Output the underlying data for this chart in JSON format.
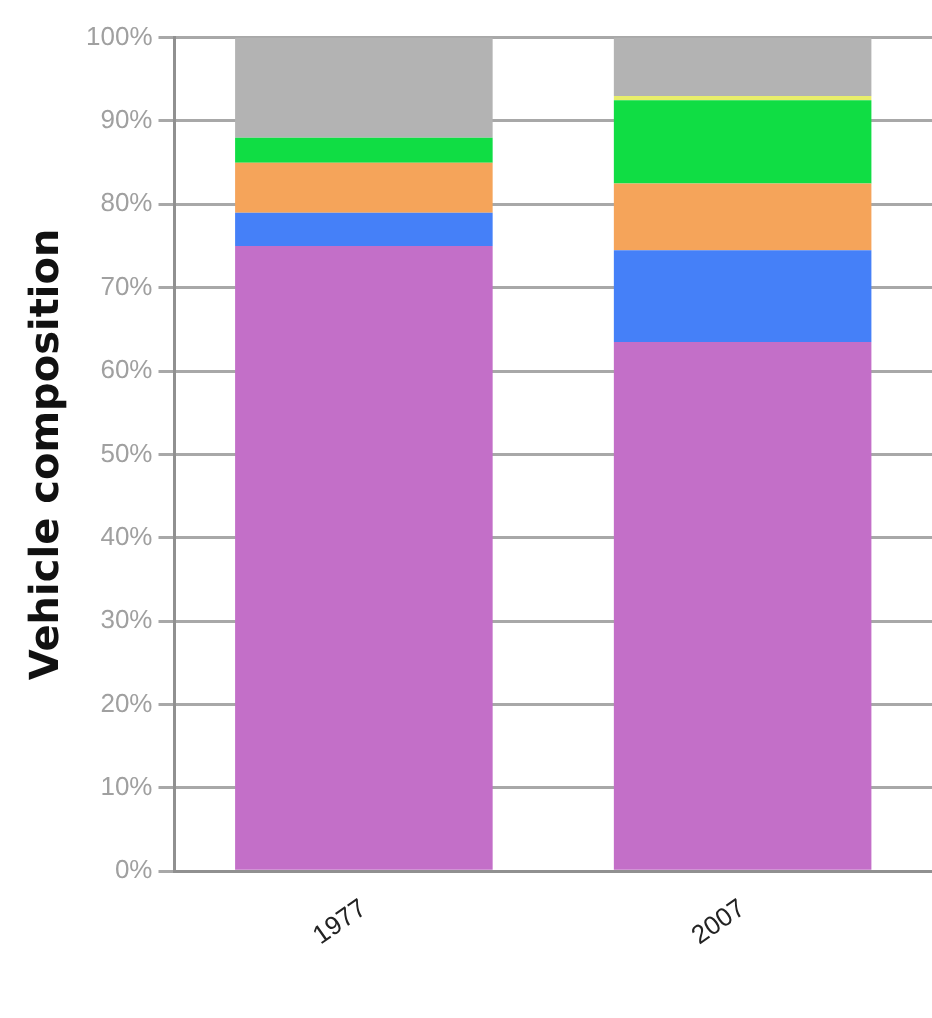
{
  "chart_data": {
    "type": "bar",
    "ylabel": "Vehicle composition",
    "categories": [
      "1977",
      "2007"
    ],
    "stacked": true,
    "series": [
      {
        "color": "#c36fc8",
        "values": [
          75,
          63.5
        ]
      },
      {
        "color": "#4580f8",
        "values": [
          4,
          11
        ]
      },
      {
        "color": "#f5a45a",
        "values": [
          6,
          8
        ]
      },
      {
        "color": "#10dd44",
        "values": [
          3,
          10
        ]
      },
      {
        "color": "#e8ee6a",
        "values": [
          0,
          0.5
        ]
      },
      {
        "color": "#b3b3b3",
        "values": [
          12,
          7
        ]
      }
    ],
    "ylim": [
      0,
      100
    ],
    "yticks": [
      {
        "value": 0,
        "label": "0%"
      },
      {
        "value": 10,
        "label": "10%"
      },
      {
        "value": 20,
        "label": "20%"
      },
      {
        "value": 30,
        "label": "30%"
      },
      {
        "value": 40,
        "label": "40%"
      },
      {
        "value": 50,
        "label": "50%"
      },
      {
        "value": 60,
        "label": "60%"
      },
      {
        "value": 70,
        "label": "70%"
      },
      {
        "value": 80,
        "label": "80%"
      },
      {
        "value": 90,
        "label": "90%"
      },
      {
        "value": 100,
        "label": "100%"
      }
    ],
    "grid": "y"
  }
}
